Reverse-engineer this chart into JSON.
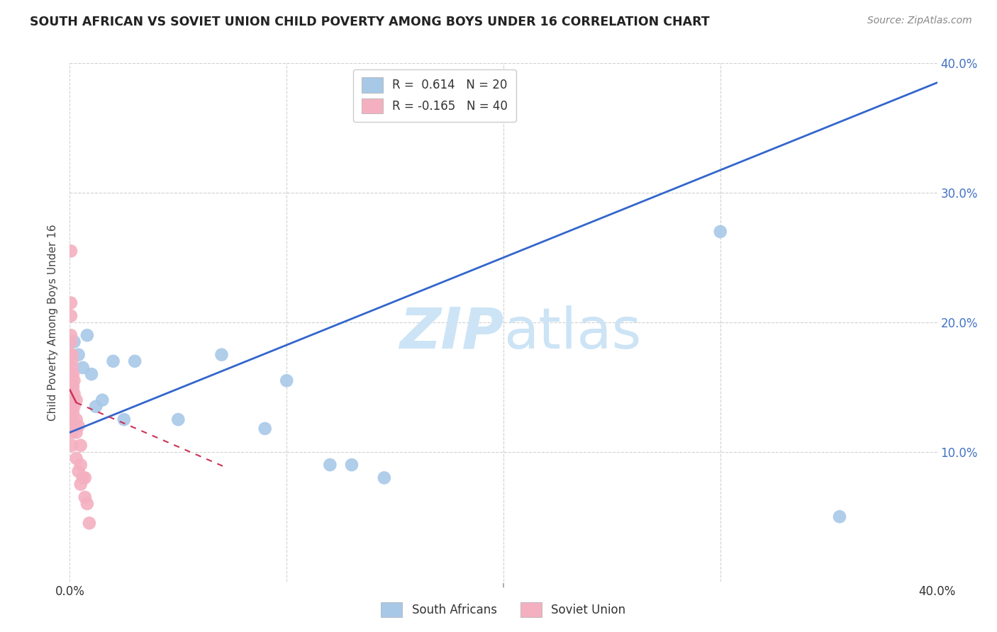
{
  "title": "SOUTH AFRICAN VS SOVIET UNION CHILD POVERTY AMONG BOYS UNDER 16 CORRELATION CHART",
  "source": "Source: ZipAtlas.com",
  "ylabel": "Child Poverty Among Boys Under 16",
  "xlim": [
    0.0,
    0.4
  ],
  "ylim": [
    0.0,
    0.4
  ],
  "sa_R": 0.614,
  "sa_N": 20,
  "su_R": -0.165,
  "su_N": 40,
  "sa_color": "#a8c8e8",
  "su_color": "#f4b0c0",
  "sa_line_color": "#3366cc",
  "su_line_color": "#cc3355",
  "watermark_color": "#cce4f5",
  "sa_line_x0": 0.0,
  "sa_line_y0": 0.115,
  "sa_line_x1": 0.4,
  "sa_line_y1": 0.385,
  "su_line_x0": 0.0,
  "su_line_y0": 0.148,
  "su_line_x1": 0.012,
  "su_line_y1": 0.115,
  "sa_points_x": [
    0.001,
    0.002,
    0.004,
    0.006,
    0.008,
    0.01,
    0.012,
    0.015,
    0.02,
    0.025,
    0.03,
    0.05,
    0.07,
    0.09,
    0.1,
    0.12,
    0.13,
    0.145,
    0.3,
    0.355
  ],
  "sa_points_y": [
    0.145,
    0.185,
    0.175,
    0.165,
    0.19,
    0.16,
    0.135,
    0.14,
    0.17,
    0.125,
    0.17,
    0.125,
    0.175,
    0.118,
    0.155,
    0.09,
    0.09,
    0.08,
    0.27,
    0.05
  ],
  "su_points_x": [
    0.0005,
    0.0005,
    0.0005,
    0.0005,
    0.0005,
    0.0005,
    0.001,
    0.001,
    0.001,
    0.001,
    0.001,
    0.001,
    0.001,
    0.001,
    0.001,
    0.001,
    0.001,
    0.001,
    0.0015,
    0.0015,
    0.0015,
    0.0015,
    0.002,
    0.002,
    0.002,
    0.002,
    0.003,
    0.003,
    0.003,
    0.003,
    0.004,
    0.004,
    0.005,
    0.005,
    0.005,
    0.006,
    0.007,
    0.007,
    0.008,
    0.009
  ],
  "su_points_y": [
    0.255,
    0.215,
    0.205,
    0.19,
    0.185,
    0.175,
    0.175,
    0.17,
    0.165,
    0.16,
    0.155,
    0.15,
    0.145,
    0.14,
    0.135,
    0.125,
    0.115,
    0.105,
    0.16,
    0.15,
    0.14,
    0.13,
    0.155,
    0.145,
    0.135,
    0.12,
    0.14,
    0.125,
    0.115,
    0.095,
    0.12,
    0.085,
    0.105,
    0.09,
    0.075,
    0.08,
    0.08,
    0.065,
    0.06,
    0.045
  ],
  "grid_color": "#cccccc",
  "tick_color_right": "#4472c4",
  "bottom_legend_labels": [
    "South Africans",
    "Soviet Union"
  ]
}
